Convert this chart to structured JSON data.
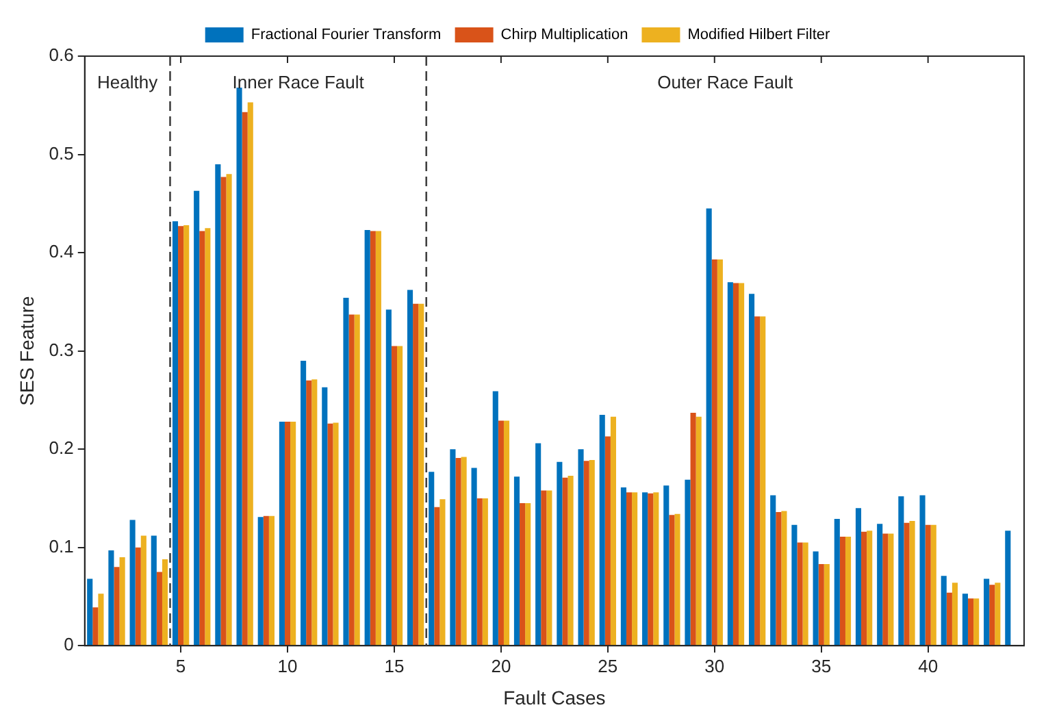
{
  "chart_data": {
    "type": "bar",
    "xlabel": "Fault Cases",
    "ylabel": "SES Feature",
    "x": [
      1,
      2,
      3,
      4,
      5,
      6,
      7,
      8,
      9,
      10,
      11,
      12,
      13,
      14,
      15,
      16,
      17,
      18,
      19,
      20,
      21,
      22,
      23,
      24,
      25,
      26,
      27,
      28,
      29,
      30,
      31,
      32,
      33,
      34,
      35,
      36,
      37,
      38,
      39,
      40,
      41,
      42,
      43,
      44
    ],
    "series": [
      {
        "name": "Fractional Fourier Transform",
        "color": "#0072bd",
        "values": [
          0.068,
          0.097,
          0.128,
          0.112,
          0.432,
          0.463,
          0.49,
          0.568,
          0.131,
          0.228,
          0.29,
          0.263,
          0.354,
          0.423,
          0.342,
          0.362,
          0.177,
          0.2,
          0.181,
          0.259,
          0.172,
          0.206,
          0.187,
          0.2,
          0.235,
          0.161,
          0.156,
          0.163,
          0.169,
          0.445,
          0.37,
          0.358,
          0.153,
          0.123,
          0.096,
          0.129,
          0.14,
          0.124,
          0.152,
          0.153,
          0.071,
          0.053,
          0.068,
          0.117
        ]
      },
      {
        "name": "Chirp Multiplication",
        "color": "#d95319",
        "values": [
          0.039,
          0.08,
          0.1,
          0.075,
          0.427,
          0.422,
          0.477,
          0.543,
          0.132,
          0.228,
          0.27,
          0.226,
          0.337,
          0.422,
          0.305,
          0.348,
          0.141,
          0.191,
          0.15,
          0.229,
          0.145,
          0.158,
          0.171,
          0.188,
          0.213,
          0.156,
          0.155,
          0.133,
          0.237,
          0.393,
          0.369,
          0.335,
          0.136,
          0.105,
          0.083,
          0.111,
          0.116,
          0.114,
          0.125,
          0.123,
          0.054,
          0.048,
          0.062,
          null
        ]
      },
      {
        "name": "Modified Hilbert Filter",
        "color": "#edb120",
        "values": [
          0.053,
          0.09,
          0.112,
          0.088,
          0.428,
          0.425,
          0.48,
          0.553,
          0.132,
          0.228,
          0.271,
          0.227,
          0.337,
          0.422,
          0.305,
          0.348,
          0.149,
          0.192,
          0.15,
          0.229,
          0.145,
          0.158,
          0.173,
          0.189,
          0.233,
          0.156,
          0.156,
          0.134,
          0.233,
          0.393,
          0.369,
          0.335,
          0.137,
          0.105,
          0.083,
          0.111,
          0.117,
          0.114,
          0.127,
          0.123,
          0.064,
          0.048,
          0.064,
          null
        ]
      }
    ],
    "xlim": [
      0.5,
      44.5
    ],
    "xticks": [
      5,
      10,
      15,
      20,
      25,
      30,
      35,
      40
    ],
    "ylim": [
      0,
      0.6
    ],
    "yticks": [
      0,
      0.1,
      0.2,
      0.3,
      0.4,
      0.5,
      0.6
    ],
    "ref_lines": [
      {
        "axis": "x",
        "value": 4.5,
        "color": "#404040",
        "line_style": "dashed"
      },
      {
        "axis": "x",
        "value": 16.5,
        "color": "#404040",
        "line_style": "dashed"
      }
    ],
    "annotations": [
      "Healthy",
      "Inner Race Fault",
      "Outer Race Fault"
    ],
    "legend": "top",
    "grid": false
  }
}
